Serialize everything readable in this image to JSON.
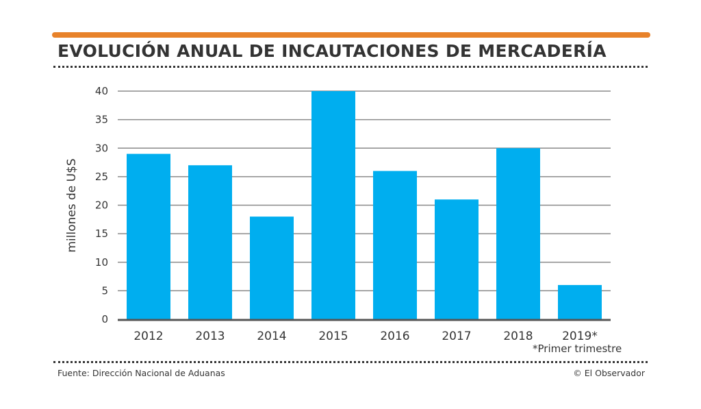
{
  "header": {
    "title": "EVOLUCIÓN ANUAL DE INCAUTACIONES DE MERCADERÍA",
    "accent_color": "#E8822A"
  },
  "chart_data": {
    "type": "bar",
    "title": "EVOLUCIÓN ANUAL DE INCAUTACIONES DE MERCADERÍA",
    "xlabel": "",
    "ylabel": "millones de U$S",
    "categories": [
      "2012",
      "2013",
      "2014",
      "2015",
      "2016",
      "2017",
      "2018",
      "2019*"
    ],
    "values": [
      29,
      27,
      18,
      40,
      26,
      21,
      30,
      6
    ],
    "ylim": [
      0,
      40
    ],
    "yticks": [
      0,
      5,
      10,
      15,
      20,
      25,
      30,
      35,
      40
    ],
    "grid": true,
    "bar_color": "#00AEEF",
    "legend": "none",
    "annotations": [
      "*Primer trimestre"
    ]
  },
  "footer": {
    "note": "*Primer trimestre",
    "source": "Fuente: Dirección Nacional de Aduanas",
    "credit": "© El Observador"
  }
}
